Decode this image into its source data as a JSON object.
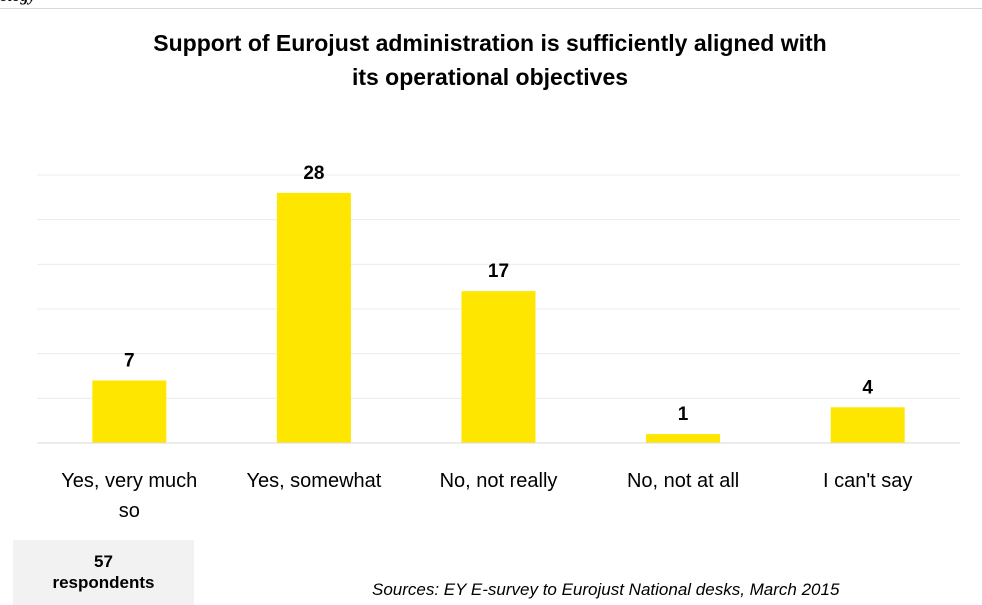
{
  "header_fragment": "ology",
  "chart_data": {
    "type": "bar",
    "title": "Support of Eurojust administration is sufficiently aligned with its operational objectives",
    "title_lines": [
      "Support of Eurojust administration is sufficiently aligned with",
      "its operational objectives"
    ],
    "categories": [
      "Yes, very much so",
      "Yes, somewhat",
      "No, not really",
      "No, not at all",
      "I can't say"
    ],
    "category_lines": [
      [
        "Yes, very much",
        "so"
      ],
      [
        "Yes, somewhat"
      ],
      [
        "No, not really"
      ],
      [
        "No, not at all"
      ],
      [
        "I can't say"
      ]
    ],
    "values": [
      7,
      28,
      17,
      1,
      4
    ],
    "data_labels": [
      "7",
      "28",
      "17",
      "1",
      "4"
    ],
    "ylim": [
      0,
      30
    ],
    "grid": true,
    "bar_color": "#ffe600",
    "grid_color": "#ececec",
    "baseline_color": "#d9d9d9"
  },
  "respondents": {
    "count": "57",
    "label": "respondents"
  },
  "source": "Sources: EY E-survey to Eurojust National desks, March 2015"
}
